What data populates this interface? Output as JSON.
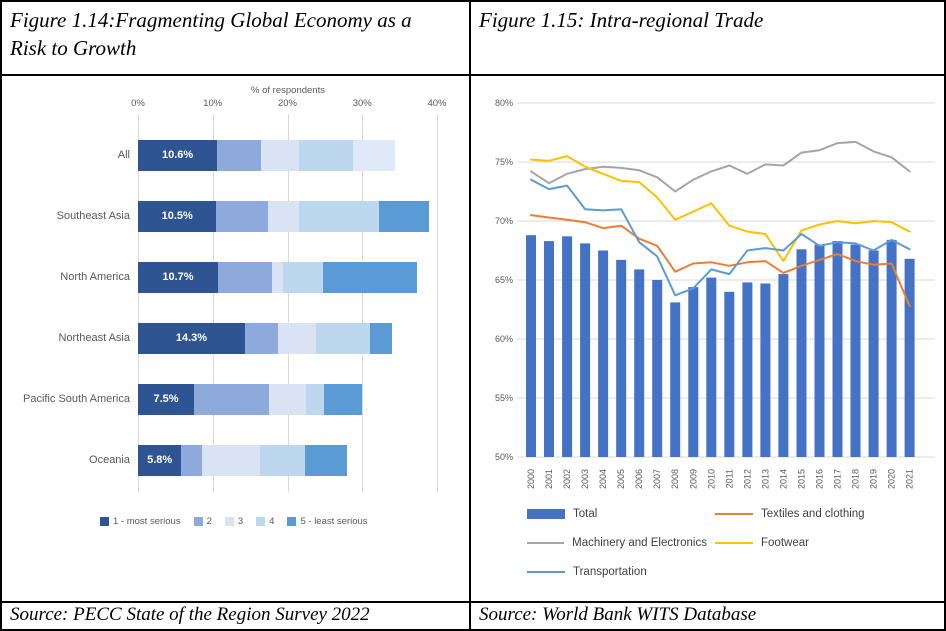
{
  "left_panel": {
    "title": "Figure 1.14:Fragmenting Global Economy as a Risk to Growth",
    "source": "Source: PECC State of the Region Survey 2022"
  },
  "right_panel": {
    "title": "Figure 1.15: Intra-regional Trade",
    "source": "Source: World Bank WITS Database"
  },
  "chart_data": [
    {
      "type": "bar",
      "orientation": "horizontal_stacked",
      "title": "Fragmenting Global Economy as a Risk to Growth",
      "axis_title": "% of respondents",
      "x_ticks": [
        "0%",
        "10%",
        "20%",
        "30%",
        "40%"
      ],
      "xlim": [
        0,
        40
      ],
      "grid": true,
      "series_labels": [
        "1 - most serious",
        "2",
        "3",
        "4",
        "5 - least serious"
      ],
      "series_colors": [
        "#2e5492",
        "#8ea9dc",
        "#dae3f3",
        "#bdd7ee",
        "#5b9bd5"
      ],
      "rows": [
        {
          "category": "All",
          "values": [
            10.6,
            5.8,
            5.1,
            7.2,
            5.7
          ],
          "bar_label": "10.6%",
          "segment_color_overrides": {
            "4": "#dfe9f7"
          }
        },
        {
          "category": "Southeast Asia",
          "values": [
            10.5,
            6.9,
            4.2,
            10.7,
            6.7
          ],
          "bar_label": "10.5%"
        },
        {
          "category": "North America",
          "values": [
            10.7,
            7.2,
            1.5,
            5.3,
            12.6
          ],
          "bar_label": "10.7%"
        },
        {
          "category": "Northeast Asia",
          "values": [
            14.3,
            4.4,
            5.1,
            7.3,
            2.9
          ],
          "bar_label": "14.3%"
        },
        {
          "category": "Pacific South America",
          "values": [
            7.5,
            10.0,
            5.0,
            2.4,
            5.1
          ],
          "bar_label": "7.5%"
        },
        {
          "category": "Oceania",
          "values": [
            5.8,
            2.7,
            7.8,
            6.0,
            5.7
          ],
          "bar_label": "5.8%"
        }
      ],
      "legend": [
        {
          "label": "1 - most serious",
          "color": "#2e5492"
        },
        {
          "label": "2",
          "color": "#8ea9dc"
        },
        {
          "label": "3",
          "color": "#dae3f3"
        },
        {
          "label": "4",
          "color": "#bdd7ee"
        },
        {
          "label": "5 - least serious",
          "color": "#5b9bd5"
        }
      ],
      "legend_position": "bottom"
    },
    {
      "type": "bar",
      "subtype": "bar+line combo",
      "title": "Intra-regional Trade",
      "x": [
        2000,
        2001,
        2002,
        2003,
        2004,
        2005,
        2006,
        2007,
        2008,
        2009,
        2010,
        2011,
        2012,
        2013,
        2014,
        2015,
        2016,
        2017,
        2018,
        2019,
        2020,
        2021
      ],
      "ylim": [
        50,
        80
      ],
      "y_ticks": [
        "80%",
        "75%",
        "70%",
        "65%",
        "60%",
        "55%",
        "50%"
      ],
      "grid": true,
      "bar_series": {
        "name": "Total",
        "color": "#4472c4",
        "values": [
          68.8,
          68.3,
          68.7,
          68.1,
          67.5,
          66.7,
          65.9,
          65.0,
          63.1,
          64.4,
          65.2,
          64.0,
          64.8,
          64.7,
          65.5,
          67.6,
          68.0,
          68.3,
          68.0,
          67.5,
          68.4,
          66.8
        ]
      },
      "line_series": [
        {
          "name": "Textiles and clothing",
          "color": "#ed7d31",
          "values": [
            70.5,
            70.3,
            70.1,
            69.9,
            69.4,
            69.6,
            68.5,
            67.9,
            65.7,
            66.4,
            66.5,
            66.2,
            66.5,
            66.6,
            65.6,
            66.2,
            66.7,
            67.2,
            66.6,
            66.3,
            66.4,
            62.8
          ]
        },
        {
          "name": "Machinery and Electronics",
          "color": "#a5a5a5",
          "values": [
            74.2,
            73.2,
            74.0,
            74.4,
            74.6,
            74.5,
            74.3,
            73.7,
            72.5,
            73.5,
            74.2,
            74.7,
            74.0,
            74.8,
            74.7,
            75.8,
            76.0,
            76.6,
            76.7,
            75.9,
            75.4,
            74.2
          ]
        },
        {
          "name": "Footwear",
          "color": "#ffc000",
          "values": [
            75.2,
            75.1,
            75.5,
            74.6,
            74.0,
            73.4,
            73.3,
            72.0,
            70.1,
            70.8,
            71.5,
            69.6,
            69.1,
            68.9,
            66.6,
            69.2,
            69.7,
            70.0,
            69.8,
            70.0,
            69.9,
            69.1
          ]
        },
        {
          "name": "Transportation",
          "color": "#5b9bd5",
          "values": [
            73.5,
            72.7,
            73.0,
            71.0,
            70.9,
            71.0,
            68.2,
            67.0,
            63.7,
            64.3,
            65.9,
            65.5,
            67.5,
            67.7,
            67.5,
            68.9,
            67.9,
            68.2,
            68.1,
            67.5,
            68.4,
            67.6
          ]
        }
      ],
      "legend": [
        {
          "label": "Total",
          "color": "#4472c4",
          "swatch": "bar"
        },
        {
          "label": "Textiles and clothing",
          "color": "#ed7d31",
          "swatch": "line"
        },
        {
          "label": "Machinery and Electronics",
          "color": "#a5a5a5",
          "swatch": "line"
        },
        {
          "label": "Footwear",
          "color": "#ffc000",
          "swatch": "line"
        },
        {
          "label": "Transportation",
          "color": "#5b9bd5",
          "swatch": "line"
        }
      ],
      "legend_position": "bottom"
    }
  ]
}
